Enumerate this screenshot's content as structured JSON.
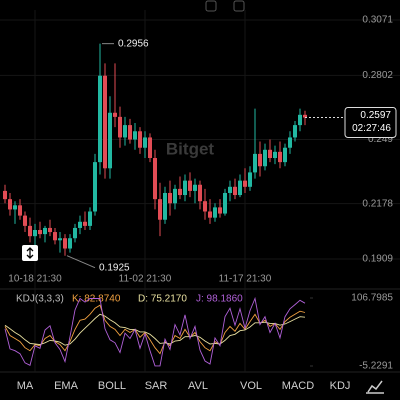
{
  "chart_data": [
    {
      "type": "candlestick",
      "up_color": "#22b8a2",
      "down_color": "#e24c55",
      "grid": true,
      "categories": [
        null,
        null,
        null,
        null,
        null,
        null,
        "10-18 21:30",
        null,
        null,
        null,
        null,
        null,
        null,
        null,
        null,
        null,
        null,
        null,
        null,
        null,
        null,
        null,
        null,
        null,
        null,
        null,
        null,
        null,
        "11-02 21:30",
        null,
        null,
        null,
        null,
        null,
        null,
        null,
        null,
        null,
        null,
        null,
        null,
        null,
        null,
        null,
        null,
        null,
        null,
        null,
        "11-17 21:30",
        null,
        null,
        null,
        null,
        null,
        null,
        null,
        null,
        null,
        null,
        null,
        null
      ],
      "open": [
        0.224,
        0.22,
        0.215,
        0.217,
        0.212,
        0.207,
        0.202,
        0.205,
        0.203,
        0.206,
        0.204,
        0.2,
        0.201,
        0.196,
        0.201,
        0.206,
        0.209,
        0.207,
        0.214,
        0.238,
        0.28,
        0.235,
        0.262,
        0.26,
        0.25,
        0.256,
        0.249,
        0.253,
        0.245,
        0.25,
        0.24,
        0.22,
        0.21,
        0.223,
        0.218,
        0.225,
        0.222,
        0.229,
        0.224,
        0.227,
        0.219,
        0.214,
        0.211,
        0.216,
        0.213,
        0.223,
        0.226,
        0.222,
        0.229,
        0.226,
        0.233,
        0.242,
        0.236,
        0.244,
        0.24,
        0.243,
        0.238,
        0.245,
        0.25,
        0.256,
        0.261
      ],
      "high": [
        0.227,
        0.223,
        0.219,
        0.22,
        0.214,
        0.211,
        0.208,
        0.209,
        0.207,
        0.21,
        0.206,
        0.204,
        0.203,
        0.203,
        0.208,
        0.212,
        0.214,
        0.216,
        0.242,
        0.2956,
        0.286,
        0.27,
        0.286,
        0.265,
        0.26,
        0.259,
        0.257,
        0.255,
        0.253,
        0.252,
        0.244,
        0.228,
        0.226,
        0.229,
        0.227,
        0.231,
        0.232,
        0.233,
        0.23,
        0.229,
        0.225,
        0.22,
        0.218,
        0.22,
        0.225,
        0.229,
        0.23,
        0.232,
        0.235,
        0.236,
        0.264,
        0.248,
        0.247,
        0.249,
        0.246,
        0.248,
        0.247,
        0.253,
        0.258,
        0.264,
        0.263
      ],
      "low": [
        0.218,
        0.212,
        0.208,
        0.21,
        0.204,
        0.199,
        0.196,
        0.201,
        0.199,
        0.202,
        0.198,
        0.194,
        0.1925,
        0.194,
        0.199,
        0.203,
        0.205,
        0.205,
        0.212,
        0.232,
        0.23,
        0.23,
        0.255,
        0.245,
        0.246,
        0.247,
        0.244,
        0.242,
        0.24,
        0.238,
        0.215,
        0.202,
        0.208,
        0.212,
        0.215,
        0.22,
        0.219,
        0.221,
        0.218,
        0.215,
        0.21,
        0.208,
        0.209,
        0.211,
        0.212,
        0.219,
        0.22,
        0.221,
        0.223,
        0.224,
        0.23,
        0.231,
        0.234,
        0.238,
        0.237,
        0.235,
        0.236,
        0.242,
        0.248,
        0.253,
        0.256
      ],
      "close": [
        0.22,
        0.215,
        0.217,
        0.212,
        0.207,
        0.202,
        0.205,
        0.203,
        0.206,
        0.204,
        0.2,
        0.201,
        0.196,
        0.201,
        0.206,
        0.209,
        0.207,
        0.214,
        0.238,
        0.28,
        0.235,
        0.262,
        0.26,
        0.25,
        0.256,
        0.249,
        0.253,
        0.245,
        0.25,
        0.24,
        0.22,
        0.21,
        0.223,
        0.218,
        0.225,
        0.222,
        0.229,
        0.224,
        0.227,
        0.219,
        0.214,
        0.211,
        0.216,
        0.213,
        0.223,
        0.226,
        0.222,
        0.229,
        0.226,
        0.233,
        0.242,
        0.236,
        0.244,
        0.24,
        0.243,
        0.238,
        0.245,
        0.25,
        0.256,
        0.261,
        0.2597
      ],
      "ylim": [
        0.1909,
        0.3071
      ],
      "yticks": [
        0.1909,
        0.2178,
        0.249,
        0.2802,
        0.3071
      ],
      "countdown": "02:27:46",
      "watermark": "Bitget"
    },
    {
      "type": "line",
      "title": "KDJ(3,3,3)",
      "ylim": [
        -5.2291,
        106.7985
      ],
      "yticks": [
        -5.2291,
        106.7985
      ],
      "series": [
        {
          "name": "K: 82.8740",
          "color": "#f0a040",
          "values": [
            60,
            45,
            40,
            35,
            25,
            20,
            30,
            28,
            40,
            45,
            35,
            30,
            20,
            35,
            55,
            70,
            72,
            80,
            90,
            95,
            70,
            60,
            55,
            45,
            55,
            50,
            55,
            42,
            50,
            38,
            25,
            15,
            35,
            28,
            45,
            40,
            55,
            42,
            50,
            35,
            25,
            20,
            35,
            30,
            50,
            60,
            52,
            65,
            55,
            68,
            80,
            65,
            70,
            60,
            65,
            55,
            68,
            75,
            80,
            85,
            82.874
          ]
        },
        {
          "name": "D: 75.2170",
          "color": "#e8e0a0",
          "values": [
            62,
            56,
            50,
            45,
            38,
            32,
            31,
            30,
            33,
            37,
            36,
            34,
            29,
            31,
            39,
            49,
            57,
            65,
            73,
            80,
            77,
            71,
            66,
            59,
            58,
            55,
            55,
            51,
            51,
            47,
            40,
            32,
            33,
            31,
            36,
            37,
            43,
            43,
            45,
            42,
            36,
            31,
            32,
            31,
            37,
            45,
            47,
            53,
            54,
            59,
            66,
            66,
            67,
            65,
            65,
            62,
            64,
            68,
            72,
            76,
            75.217
          ]
        },
        {
          "name": "J: 98.1860",
          "color": "#b060d8",
          "values": [
            56,
            23,
            20,
            15,
            0,
            -4,
            28,
            24,
            54,
            61,
            33,
            22,
            2,
            43,
            87,
            106,
            100,
            106,
            106,
            106,
            56,
            38,
            33,
            17,
            49,
            40,
            55,
            24,
            48,
            20,
            -5,
            -5,
            39,
            22,
            63,
            46,
            79,
            40,
            60,
            21,
            3,
            -2,
            41,
            28,
            76,
            90,
            62,
            89,
            57,
            86,
            106,
            63,
            76,
            50,
            65,
            41,
            76,
            89,
            96,
            103,
            98.186
          ]
        }
      ]
    }
  ],
  "indicator_tabs": [
    "MA",
    "EMA",
    "BOLL",
    "SAR",
    "AVL",
    "VOL",
    "MACD",
    "KDJ"
  ]
}
